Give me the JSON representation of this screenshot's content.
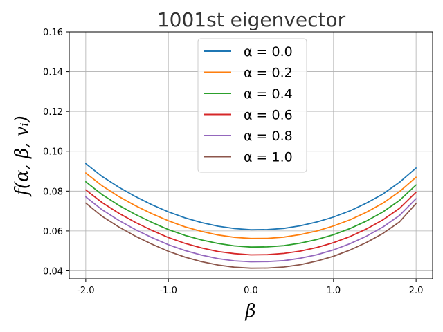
{
  "chart_data": {
    "type": "line",
    "title": "1001st eigenvector",
    "xlabel": "β",
    "ylabel": "f(α, β, vᵢ)",
    "xlim": [
      -2.2,
      2.2
    ],
    "ylim": [
      0.036,
      0.16
    ],
    "x_ticks": [
      -2.0,
      -1.0,
      0.0,
      1.0,
      2.0
    ],
    "x_tick_labels": [
      "-2.0",
      "-1.0",
      "0.0",
      "1.0",
      "2.0"
    ],
    "y_ticks": [
      0.04,
      0.06,
      0.08,
      0.1,
      0.12,
      0.14,
      0.16
    ],
    "y_tick_labels": [
      "0.04",
      "0.06",
      "0.08",
      "0.10",
      "0.12",
      "0.14",
      "0.16"
    ],
    "grid": true,
    "legend_position": "top-center",
    "x": [
      -2.0,
      -1.8,
      -1.6,
      -1.4,
      -1.2,
      -1.0,
      -0.8,
      -0.6,
      -0.4,
      -0.2,
      0.0,
      0.2,
      0.4,
      0.6,
      0.8,
      1.0,
      1.2,
      1.4,
      1.6,
      1.8,
      2.0
    ],
    "series": [
      {
        "name": "α = 0.0",
        "color": "#1f77b4",
        "values": [
          0.0938,
          0.0873,
          0.082,
          0.0773,
          0.0732,
          0.0696,
          0.0666,
          0.0642,
          0.0624,
          0.0612,
          0.0606,
          0.0607,
          0.0613,
          0.0626,
          0.0645,
          0.067,
          0.0701,
          0.074,
          0.0786,
          0.0845,
          0.0916
        ]
      },
      {
        "name": "α = 0.2",
        "color": "#ff7f0e",
        "values": [
          0.0891,
          0.0826,
          0.0773,
          0.0727,
          0.0687,
          0.0651,
          0.0621,
          0.0598,
          0.058,
          0.0568,
          0.0562,
          0.0563,
          0.0569,
          0.0582,
          0.06,
          0.0625,
          0.0656,
          0.0694,
          0.074,
          0.0798,
          0.087
        ]
      },
      {
        "name": "α = 0.4",
        "color": "#2ca02c",
        "values": [
          0.0847,
          0.0782,
          0.0729,
          0.0683,
          0.0643,
          0.0607,
          0.0578,
          0.0555,
          0.0537,
          0.0525,
          0.0519,
          0.052,
          0.0526,
          0.0539,
          0.0557,
          0.0581,
          0.0612,
          0.065,
          0.0696,
          0.0754,
          0.0831
        ]
      },
      {
        "name": "α = 0.6",
        "color": "#d62728",
        "values": [
          0.0806,
          0.0742,
          0.0689,
          0.0643,
          0.0603,
          0.0567,
          0.0538,
          0.0515,
          0.0497,
          0.0486,
          0.048,
          0.0481,
          0.0487,
          0.0499,
          0.0517,
          0.0541,
          0.0572,
          0.061,
          0.0656,
          0.0714,
          0.0795
        ]
      },
      {
        "name": "α = 0.8",
        "color": "#9467bd",
        "values": [
          0.0771,
          0.0706,
          0.0653,
          0.0607,
          0.0567,
          0.0531,
          0.0502,
          0.0479,
          0.0461,
          0.045,
          0.0445,
          0.0446,
          0.0451,
          0.0463,
          0.0481,
          0.0505,
          0.0536,
          0.0574,
          0.062,
          0.0678,
          0.0762
        ]
      },
      {
        "name": "α = 1.0",
        "color": "#8c564b",
        "values": [
          0.074,
          0.0673,
          0.062,
          0.0574,
          0.0534,
          0.0498,
          0.0469,
          0.0446,
          0.0429,
          0.0418,
          0.0413,
          0.0414,
          0.0419,
          0.0431,
          0.0449,
          0.0473,
          0.0504,
          0.0542,
          0.0588,
          0.0646,
          0.0738
        ]
      }
    ]
  }
}
